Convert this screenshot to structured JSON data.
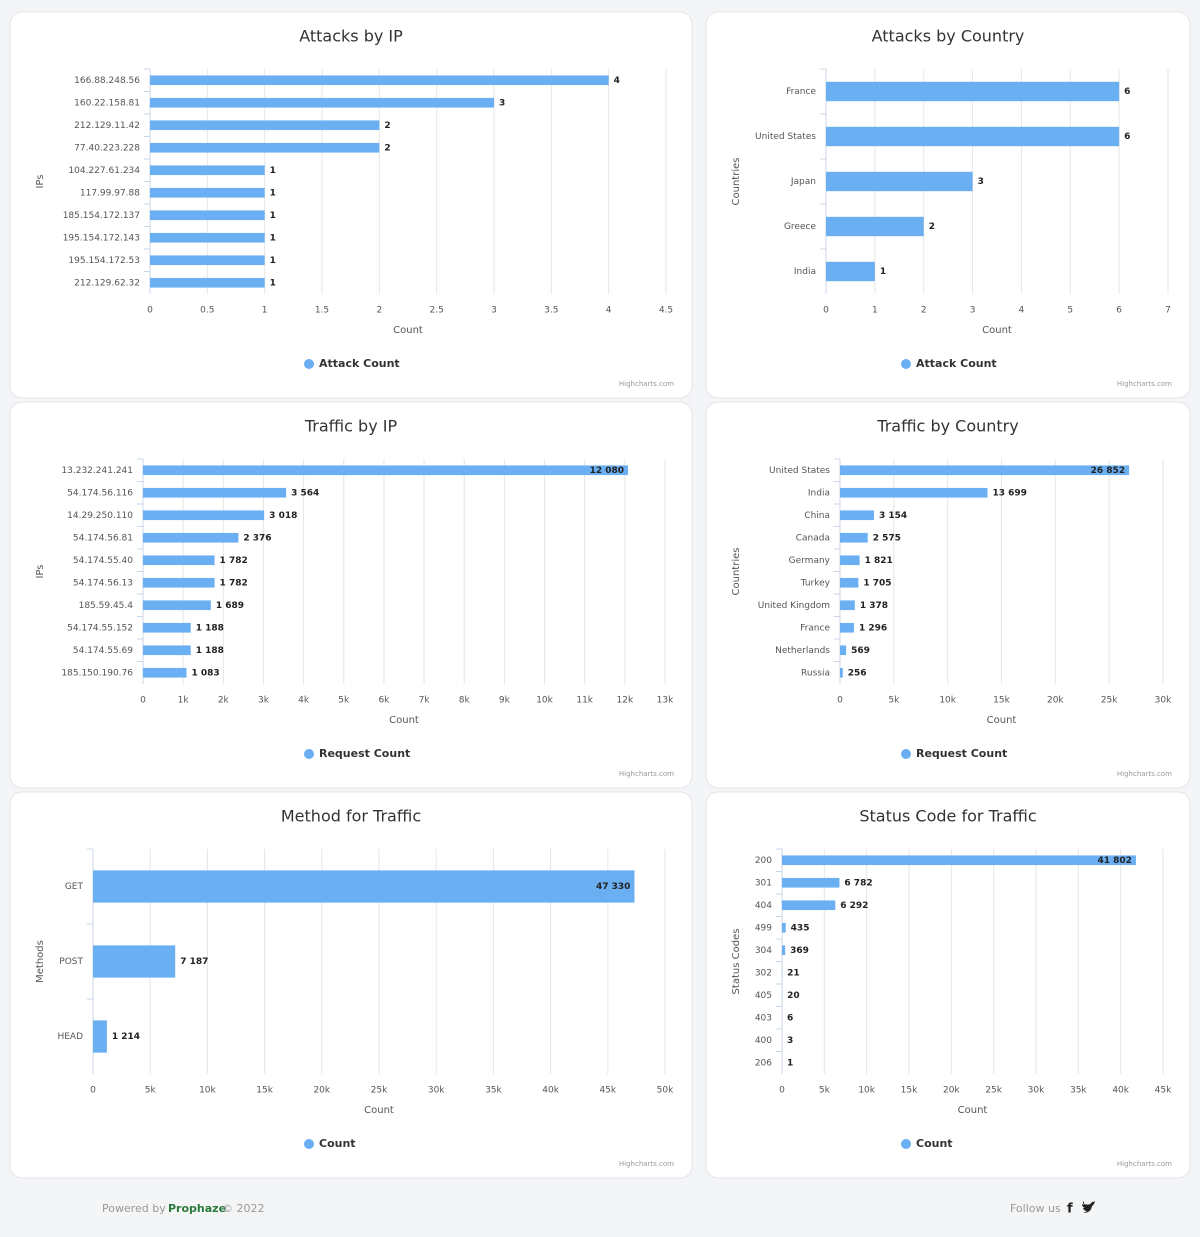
{
  "chart_data": [
    {
      "type": "bar",
      "title": "Attacks by IP",
      "y_title": "IPs",
      "x_title": "Count",
      "credits": "Highcharts.com",
      "categories": [
        "166.88.248.56",
        "160.22.158.81",
        "212.129.11.42",
        "77.40.223.228",
        "104.227.61.234",
        "117.99.97.88",
        "185.154.172.137",
        "195.154.172.143",
        "195.154.172.53",
        "212.129.62.32"
      ],
      "series": [
        {
          "name": "Attack Count",
          "color": "#6aaff2",
          "values": [
            4,
            3,
            2,
            2,
            1,
            1,
            1,
            1,
            1,
            1
          ]
        }
      ],
      "xlim": [
        0,
        4.5
      ],
      "xticks": [
        0,
        0.5,
        1,
        1.5,
        2,
        2.5,
        3,
        3.5,
        4,
        4.5
      ],
      "grid": true
    },
    {
      "type": "bar",
      "title": "Attacks by Country",
      "y_title": "Countries",
      "x_title": "Count",
      "credits": "Highcharts.com",
      "categories": [
        "France",
        "United States",
        "Japan",
        "Greece",
        "India"
      ],
      "series": [
        {
          "name": "Attack Count",
          "color": "#6aaff2",
          "values": [
            6,
            6,
            3,
            2,
            1
          ]
        }
      ],
      "xlim": [
        0,
        7
      ],
      "xticks": [
        0,
        1,
        2,
        3,
        4,
        5,
        6,
        7
      ],
      "grid": true
    },
    {
      "type": "bar",
      "title": "Traffic by IP",
      "y_title": "IPs",
      "x_title": "Count",
      "credits": "Highcharts.com",
      "categories": [
        "13.232.241.241",
        "54.174.56.116",
        "14.29.250.110",
        "54.174.56.81",
        "54.174.55.40",
        "54.174.56.13",
        "185.59.45.4",
        "54.174.55.152",
        "54.174.55.69",
        "185.150.190.76"
      ],
      "series": [
        {
          "name": "Request Count",
          "color": "#6aaff2",
          "values": [
            12080,
            3564,
            3018,
            2376,
            1782,
            1782,
            1689,
            1188,
            1188,
            1083
          ],
          "value_labels": [
            "12 080",
            "3 564",
            "3 018",
            "2 376",
            "1 782",
            "1 782",
            "1 689",
            "1 188",
            "1 188",
            "1 083"
          ]
        }
      ],
      "xlim": [
        0,
        13000
      ],
      "xticks": [
        0,
        {
          "value": 1000,
          "label": "1k"
        },
        {
          "value": 2000,
          "label": "2k"
        },
        {
          "value": 3000,
          "label": "3k"
        },
        {
          "value": 4000,
          "label": "4k"
        },
        {
          "value": 5000,
          "label": "5k"
        },
        {
          "value": 6000,
          "label": "6k"
        },
        {
          "value": 7000,
          "label": "7k"
        },
        {
          "value": 8000,
          "label": "8k"
        },
        {
          "value": 9000,
          "label": "9k"
        },
        {
          "value": 10000,
          "label": "10k"
        },
        {
          "value": 11000,
          "label": "11k"
        },
        {
          "value": 12000,
          "label": "12k"
        },
        {
          "value": 13000,
          "label": "13k"
        }
      ],
      "grid": true
    },
    {
      "type": "bar",
      "title": "Traffic by Country",
      "y_title": "Countries",
      "x_title": "Count",
      "credits": "Highcharts.com",
      "categories": [
        "United States",
        "India",
        "China",
        "Canada",
        "Germany",
        "Turkey",
        "United Kingdom",
        "France",
        "Netherlands",
        "Russia"
      ],
      "series": [
        {
          "name": "Request Count",
          "color": "#6aaff2",
          "values": [
            26852,
            13699,
            3154,
            2575,
            1821,
            1705,
            1378,
            1296,
            569,
            256
          ],
          "value_labels": [
            "26 852",
            "13 699",
            "3 154",
            "2 575",
            "1 821",
            "1 705",
            "1 378",
            "1 296",
            "569",
            "256"
          ]
        }
      ],
      "xlim": [
        0,
        30000
      ],
      "xticks": [
        0,
        {
          "value": 5000,
          "label": "5k"
        },
        {
          "value": 10000,
          "label": "10k"
        },
        {
          "value": 15000,
          "label": "15k"
        },
        {
          "value": 20000,
          "label": "20k"
        },
        {
          "value": 25000,
          "label": "25k"
        },
        {
          "value": 30000,
          "label": "30k"
        }
      ],
      "grid": true
    },
    {
      "type": "bar",
      "title": "Method for Traffic",
      "y_title": "Methods",
      "x_title": "Count",
      "credits": "Highcharts.com",
      "categories": [
        "GET",
        "POST",
        "HEAD"
      ],
      "series": [
        {
          "name": "Count",
          "color": "#6aaff2",
          "values": [
            47330,
            7187,
            1214
          ],
          "value_labels": [
            "47 330",
            "7 187",
            "1 214"
          ]
        }
      ],
      "xlim": [
        0,
        50000
      ],
      "xticks": [
        0,
        {
          "value": 5000,
          "label": "5k"
        },
        {
          "value": 10000,
          "label": "10k"
        },
        {
          "value": 15000,
          "label": "15k"
        },
        {
          "value": 20000,
          "label": "20k"
        },
        {
          "value": 25000,
          "label": "25k"
        },
        {
          "value": 30000,
          "label": "30k"
        },
        {
          "value": 35000,
          "label": "35k"
        },
        {
          "value": 40000,
          "label": "40k"
        },
        {
          "value": 45000,
          "label": "45k"
        },
        {
          "value": 50000,
          "label": "50k"
        }
      ],
      "grid": true
    },
    {
      "type": "bar",
      "title": "Status Code for Traffic",
      "y_title": "Status Codes",
      "x_title": "Count",
      "credits": "Highcharts.com",
      "categories": [
        "200",
        "301",
        "404",
        "499",
        "304",
        "302",
        "405",
        "403",
        "400",
        "206"
      ],
      "series": [
        {
          "name": "Count",
          "color": "#6aaff2",
          "values": [
            41802,
            6782,
            6292,
            435,
            369,
            21,
            20,
            6,
            3,
            1
          ],
          "value_labels": [
            "41 802",
            "6 782",
            "6 292",
            "435",
            "369",
            "21",
            "20",
            "6",
            "3",
            "1"
          ]
        }
      ],
      "xlim": [
        0,
        45000
      ],
      "xticks": [
        0,
        {
          "value": 5000,
          "label": "5k"
        },
        {
          "value": 10000,
          "label": "10k"
        },
        {
          "value": 15000,
          "label": "15k"
        },
        {
          "value": 20000,
          "label": "20k"
        },
        {
          "value": 25000,
          "label": "25k"
        },
        {
          "value": 30000,
          "label": "30k"
        },
        {
          "value": 35000,
          "label": "35k"
        },
        {
          "value": 40000,
          "label": "40k"
        },
        {
          "value": 45000,
          "label": "45k"
        }
      ],
      "grid": true
    }
  ],
  "footer": {
    "powered": "Powered by",
    "brand": "Prophaze",
    "copyright": "© 2022",
    "follow": "Follow us"
  }
}
